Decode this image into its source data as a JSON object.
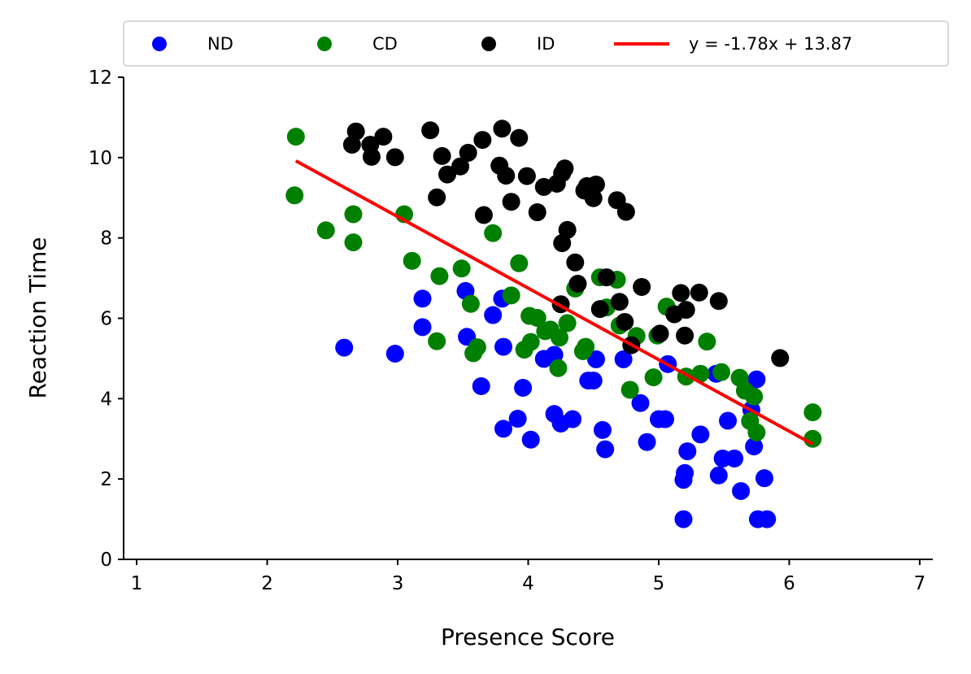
{
  "chart_data": {
    "type": "scatter",
    "title": "",
    "xlabel": "Presence Score",
    "ylabel": "Reaction Time",
    "xlim": [
      0.9,
      7.1
    ],
    "ylim": [
      0,
      12
    ],
    "xticks": [
      1,
      2,
      3,
      4,
      5,
      6,
      7
    ],
    "yticks": [
      0,
      2,
      4,
      6,
      8,
      10,
      12
    ],
    "grid": false,
    "legend_position": "top",
    "series": [
      {
        "name": "ND",
        "color": "#0000ff",
        "points": [
          [
            2.59,
            5.27
          ],
          [
            2.98,
            5.12
          ],
          [
            3.19,
            6.49
          ],
          [
            3.19,
            5.78
          ],
          [
            3.52,
            6.68
          ],
          [
            3.53,
            5.54
          ],
          [
            3.64,
            4.31
          ],
          [
            3.73,
            6.08
          ],
          [
            3.8,
            6.49
          ],
          [
            3.81,
            5.29
          ],
          [
            3.81,
            3.25
          ],
          [
            3.92,
            3.5
          ],
          [
            3.96,
            4.27
          ],
          [
            4.02,
            2.98
          ],
          [
            4.12,
            4.99
          ],
          [
            4.2,
            3.62
          ],
          [
            4.2,
            5.09
          ],
          [
            4.25,
            3.38
          ],
          [
            4.34,
            3.49
          ],
          [
            4.46,
            4.45
          ],
          [
            4.5,
            4.45
          ],
          [
            4.52,
            4.98
          ],
          [
            4.57,
            3.22
          ],
          [
            4.59,
            2.74
          ],
          [
            4.73,
            4.98
          ],
          [
            4.86,
            3.89
          ],
          [
            4.91,
            2.92
          ],
          [
            5.0,
            3.49
          ],
          [
            5.05,
            3.49
          ],
          [
            5.07,
            4.86
          ],
          [
            5.19,
            1.0
          ],
          [
            5.19,
            1.98
          ],
          [
            5.2,
            2.15
          ],
          [
            5.22,
            2.69
          ],
          [
            5.32,
            3.11
          ],
          [
            5.44,
            4.62
          ],
          [
            5.46,
            2.09
          ],
          [
            5.49,
            2.51
          ],
          [
            5.53,
            3.45
          ],
          [
            5.58,
            2.51
          ],
          [
            5.63,
            1.7
          ],
          [
            5.71,
            3.72
          ],
          [
            5.73,
            2.81
          ],
          [
            5.75,
            4.48
          ],
          [
            5.76,
            1.0
          ],
          [
            5.81,
            2.02
          ],
          [
            5.83,
            1.0
          ]
        ]
      },
      {
        "name": "CD",
        "color": "#008000",
        "points": [
          [
            2.22,
            10.52
          ],
          [
            2.21,
            9.06
          ],
          [
            2.45,
            8.19
          ],
          [
            2.66,
            8.59
          ],
          [
            2.66,
            7.89
          ],
          [
            3.05,
            8.59
          ],
          [
            3.11,
            7.43
          ],
          [
            3.3,
            5.43
          ],
          [
            3.32,
            7.05
          ],
          [
            3.49,
            7.24
          ],
          [
            3.56,
            6.36
          ],
          [
            3.58,
            5.13
          ],
          [
            3.61,
            5.28
          ],
          [
            3.73,
            8.12
          ],
          [
            3.93,
            7.37
          ],
          [
            3.87,
            6.57
          ],
          [
            3.97,
            5.22
          ],
          [
            4.01,
            6.06
          ],
          [
            4.02,
            5.41
          ],
          [
            4.07,
            6.01
          ],
          [
            4.13,
            5.68
          ],
          [
            4.17,
            5.72
          ],
          [
            4.23,
            4.76
          ],
          [
            4.24,
            5.52
          ],
          [
            4.3,
            5.88
          ],
          [
            4.36,
            6.74
          ],
          [
            4.42,
            5.18
          ],
          [
            4.44,
            5.29
          ],
          [
            4.55,
            7.02
          ],
          [
            4.6,
            6.27
          ],
          [
            4.68,
            6.96
          ],
          [
            4.7,
            5.82
          ],
          [
            4.78,
            4.22
          ],
          [
            4.83,
            5.56
          ],
          [
            4.96,
            4.53
          ],
          [
            4.99,
            5.57
          ],
          [
            5.06,
            6.29
          ],
          [
            5.21,
            4.55
          ],
          [
            5.32,
            4.62
          ],
          [
            5.37,
            5.42
          ],
          [
            5.48,
            4.66
          ],
          [
            5.62,
            4.52
          ],
          [
            5.66,
            4.2
          ],
          [
            5.7,
            3.44
          ],
          [
            5.73,
            4.05
          ],
          [
            5.75,
            3.16
          ],
          [
            6.18,
            3.66
          ],
          [
            6.18,
            3.0
          ]
        ]
      },
      {
        "name": "ID",
        "color": "#000000",
        "points": [
          [
            2.65,
            10.32
          ],
          [
            2.68,
            10.65
          ],
          [
            2.79,
            10.32
          ],
          [
            2.8,
            10.02
          ],
          [
            2.89,
            10.52
          ],
          [
            2.98,
            10.01
          ],
          [
            3.25,
            10.68
          ],
          [
            3.3,
            9.01
          ],
          [
            3.34,
            10.04
          ],
          [
            3.38,
            9.58
          ],
          [
            3.48,
            9.78
          ],
          [
            3.54,
            10.12
          ],
          [
            3.65,
            10.44
          ],
          [
            3.66,
            8.57
          ],
          [
            3.78,
            9.8
          ],
          [
            3.8,
            10.72
          ],
          [
            3.83,
            9.55
          ],
          [
            3.87,
            8.9
          ],
          [
            3.93,
            10.49
          ],
          [
            3.99,
            9.54
          ],
          [
            4.07,
            8.64
          ],
          [
            4.12,
            9.27
          ],
          [
            4.22,
            9.35
          ],
          [
            4.25,
            6.35
          ],
          [
            4.26,
            7.87
          ],
          [
            4.26,
            9.61
          ],
          [
            4.28,
            9.73
          ],
          [
            4.3,
            8.2
          ],
          [
            4.36,
            7.39
          ],
          [
            4.38,
            6.86
          ],
          [
            4.43,
            9.18
          ],
          [
            4.45,
            9.29
          ],
          [
            4.5,
            8.99
          ],
          [
            4.52,
            9.33
          ],
          [
            4.55,
            6.23
          ],
          [
            4.6,
            7.02
          ],
          [
            4.68,
            8.94
          ],
          [
            4.7,
            6.41
          ],
          [
            4.75,
            8.65
          ],
          [
            4.74,
            5.91
          ],
          [
            4.79,
            5.33
          ],
          [
            4.87,
            6.78
          ],
          [
            5.01,
            5.62
          ],
          [
            5.12,
            6.1
          ],
          [
            5.17,
            6.63
          ],
          [
            5.21,
            6.21
          ],
          [
            5.2,
            5.57
          ],
          [
            5.31,
            6.64
          ],
          [
            5.46,
            6.43
          ],
          [
            5.93,
            5.01
          ]
        ]
      }
    ],
    "fit_line": {
      "label": "y = -1.78x + 13.87",
      "color": "#ff0000",
      "slope": -1.78,
      "intercept": 13.87,
      "x_range": [
        2.22,
        6.18
      ]
    }
  }
}
